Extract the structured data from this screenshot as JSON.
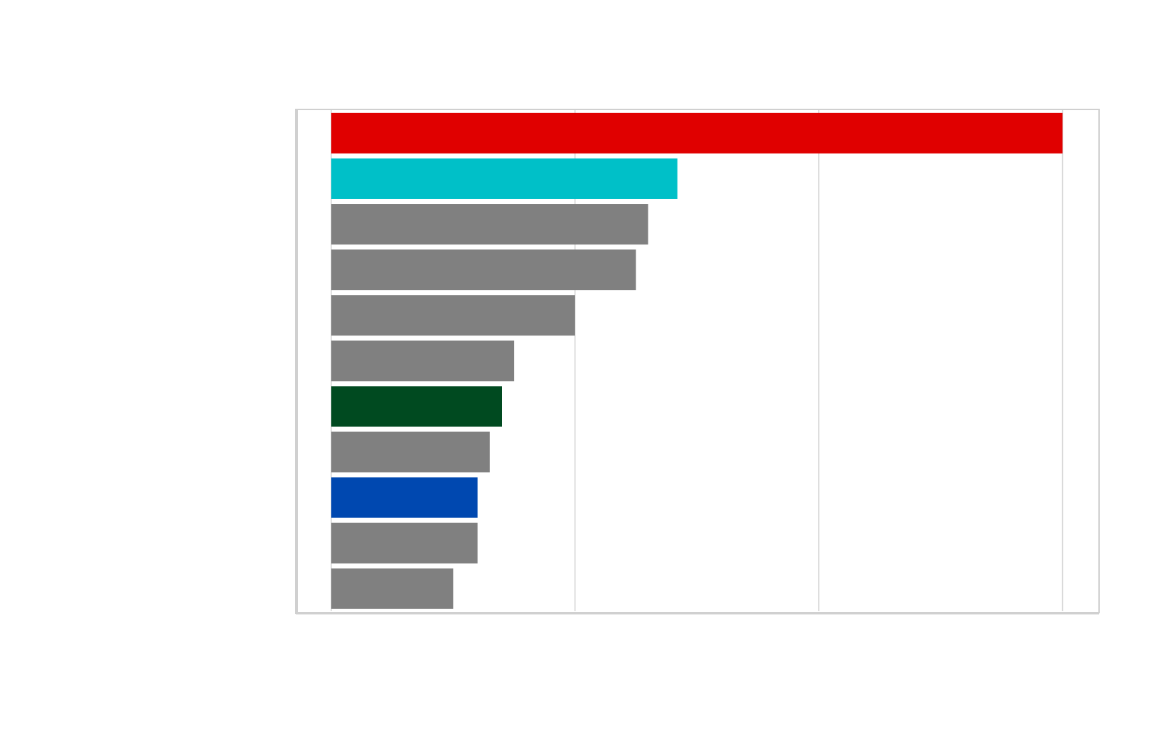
{
  "chart_data": {
    "type": "barh",
    "categories": [
      null,
      null,
      null,
      null,
      null,
      null,
      null,
      null,
      null,
      null,
      null
    ],
    "values": [
      3.0,
      1.42,
      1.3,
      1.25,
      1.0,
      0.75,
      0.7,
      0.65,
      0.6,
      0.6,
      0.5
    ],
    "colors": [
      "#e00000",
      "#00c0c8",
      "#808080",
      "#808080",
      "#808080",
      "#808080",
      "#004a20",
      "#808080",
      "#0048b0",
      "#808080",
      "#808080"
    ],
    "xlim": [
      -0.14,
      3.15
    ],
    "xticks": [
      0,
      1,
      2,
      3
    ],
    "grid": true
  }
}
